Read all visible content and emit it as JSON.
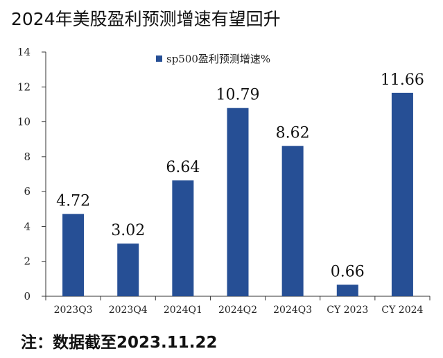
{
  "title": "2024年美股盈利预测增速有望回升",
  "note": "注：数据截至2023.11.22",
  "colors": {
    "bar": "#264f95",
    "axis": "#333333"
  },
  "chart_data": {
    "type": "bar",
    "categories": [
      "2023Q3",
      "2023Q4",
      "2024Q1",
      "2024Q2",
      "2024Q3",
      "CY 2023",
      "CY 2024"
    ],
    "series": [
      {
        "name": "sp500盈利预测增速%",
        "values": [
          4.72,
          3.02,
          6.64,
          10.79,
          8.62,
          0.66,
          11.66
        ]
      }
    ],
    "data_labels": [
      "4.72",
      "3.02",
      "6.64",
      "10.79",
      "8.62",
      "0.66",
      "11.66"
    ],
    "yticks": [
      0,
      2,
      4,
      6,
      8,
      10,
      12,
      14
    ],
    "ylim": [
      0,
      14
    ],
    "grid": false,
    "legend_position": "top"
  }
}
